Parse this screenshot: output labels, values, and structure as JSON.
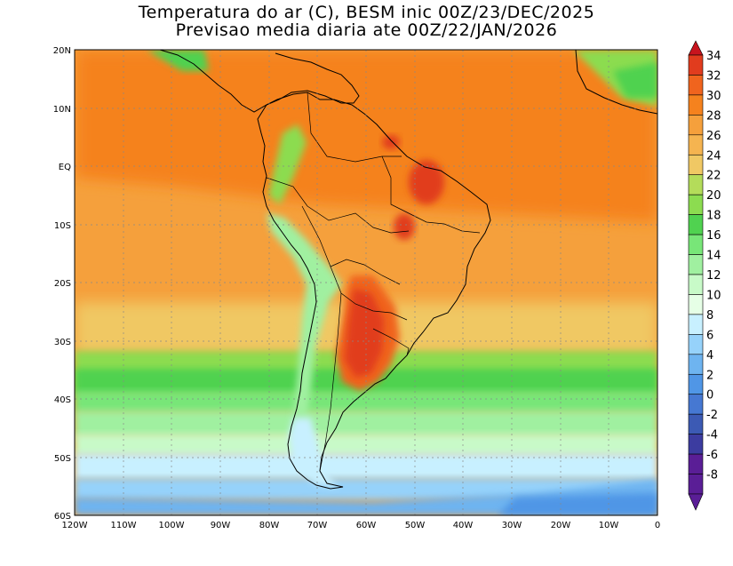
{
  "title": {
    "line1": "Temperatura do ar (C), BESM inic 00Z/23/DEC/2025",
    "line2": "Previsao media diaria ate 00Z/22/JAN/2026"
  },
  "lat_ticks": [
    "20N",
    "10N",
    "EQ",
    "10S",
    "20S",
    "30S",
    "40S",
    "50S",
    "60S"
  ],
  "lon_ticks": [
    "120W",
    "110W",
    "100W",
    "90W",
    "80W",
    "70W",
    "60W",
    "50W",
    "40W",
    "30W",
    "20W",
    "10W",
    "0"
  ],
  "colorbar": {
    "labels": [
      "34",
      "32",
      "30",
      "28",
      "26",
      "24",
      "22",
      "20",
      "18",
      "16",
      "14",
      "12",
      "10",
      "8",
      "6",
      "4",
      "2",
      "0",
      "-2",
      "-4",
      "-6",
      "-8"
    ],
    "colors": [
      "#c8141e",
      "#e13c1e",
      "#f0641e",
      "#f5821e",
      "#f5a03c",
      "#f5b450",
      "#f0c864",
      "#b4dc5a",
      "#8cdc50",
      "#50d250",
      "#78e678",
      "#a0f0a0",
      "#c8fac8",
      "#e6ffe6",
      "#c8f0ff",
      "#96d2fa",
      "#6eb4f0",
      "#5096e6",
      "#4678d2",
      "#3c5ab4",
      "#3c3ca0",
      "#5a1e96"
    ]
  }
}
